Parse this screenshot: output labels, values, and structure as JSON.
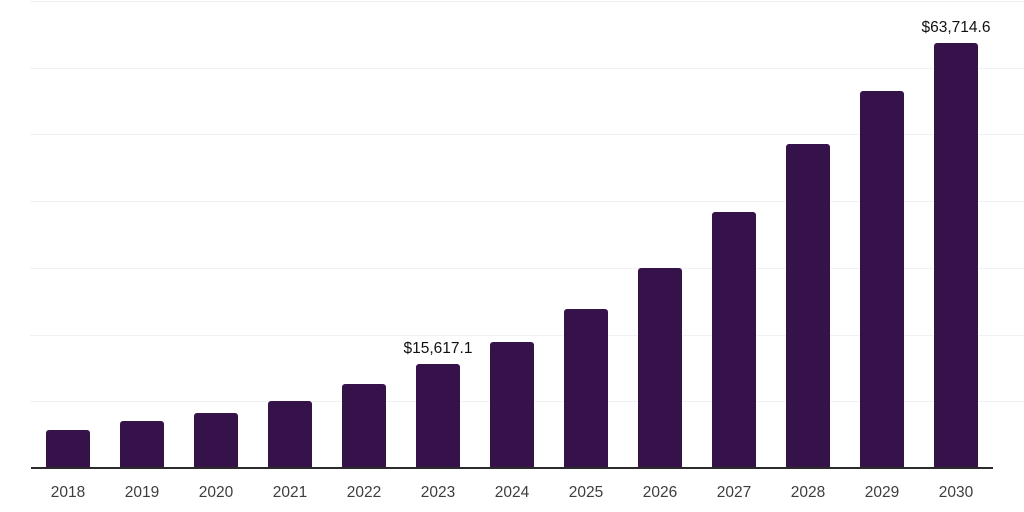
{
  "chart_data": {
    "type": "bar",
    "title": "",
    "xlabel": "",
    "ylabel": "",
    "categories": [
      "2018",
      "2019",
      "2020",
      "2021",
      "2022",
      "2023",
      "2024",
      "2025",
      "2026",
      "2027",
      "2028",
      "2029",
      "2030"
    ],
    "series": [
      {
        "name": "value-usd",
        "values": [
          5700,
          7100,
          8200,
          10100,
          12600,
          15617.1,
          18900,
          23900,
          30000,
          38400,
          48600,
          56500,
          63714.6
        ]
      }
    ],
    "point_labels": [
      "",
      "",
      "",
      "",
      "",
      "$15,617.1",
      "",
      "",
      "",
      "",
      "",
      "",
      "$63,714.6"
    ],
    "ylim": [
      0,
      70000
    ],
    "gridline_step": 10000,
    "grid": "horizontal-only",
    "legend": "none",
    "colors": {
      "bar": "#36124B",
      "axis_line": "#2B2B2B",
      "gridline": "#F1F1F4",
      "tick_label": "#3D3D3D",
      "data_label": "#111111",
      "background": "#FFFFFF"
    }
  }
}
